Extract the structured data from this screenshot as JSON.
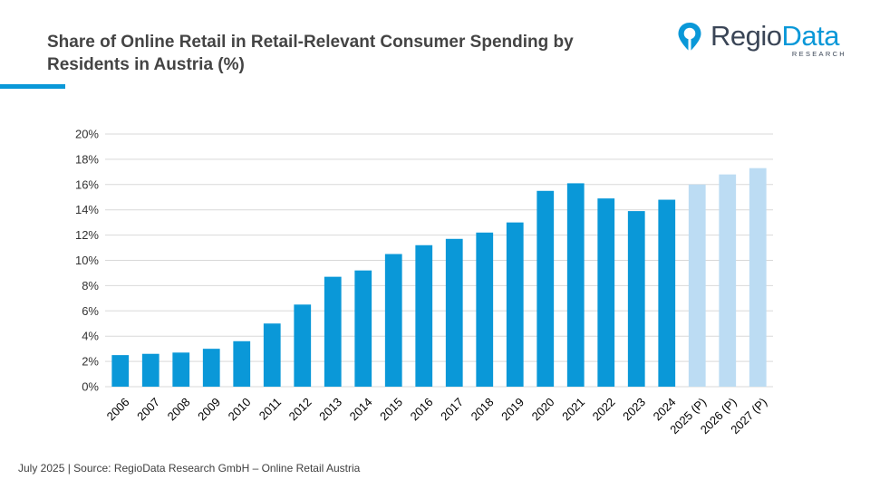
{
  "title_lines": [
    "Share of Online Retail in Retail-Relevant Consumer Spending by",
    "Residents in Austria (%)"
  ],
  "logo": {
    "name_part1": "Regio",
    "name_part2": "Data",
    "subtitle": "RESEARCH"
  },
  "footer": "July 2025 | Source: RegioData Research GmbH – Online Retail Austria",
  "colors": {
    "actual": "#0a98d8",
    "projected": "#bcdcf3",
    "accent": "#0a98d8",
    "grid": "#d9d9d9",
    "logo_dark": "#3a4556"
  },
  "chart_data": {
    "type": "bar",
    "categories": [
      "2006",
      "2007",
      "2008",
      "2009",
      "2010",
      "2011",
      "2012",
      "2013",
      "2014",
      "2015",
      "2016",
      "2017",
      "2018",
      "2019",
      "2020",
      "2021",
      "2022",
      "2023",
      "2024",
      "2025 (P)",
      "2026 (P)",
      "2027 (P)"
    ],
    "values": [
      2.5,
      2.6,
      2.7,
      3.0,
      3.6,
      5.0,
      6.5,
      8.7,
      9.2,
      10.5,
      11.2,
      11.7,
      12.2,
      13.0,
      15.5,
      16.1,
      14.9,
      13.9,
      14.8,
      16.0,
      16.8,
      17.3
    ],
    "projected": [
      false,
      false,
      false,
      false,
      false,
      false,
      false,
      false,
      false,
      false,
      false,
      false,
      false,
      false,
      false,
      false,
      false,
      false,
      false,
      true,
      true,
      true
    ],
    "ylim": [
      0,
      20
    ],
    "yticks": [
      "0%",
      "2%",
      "4%",
      "6%",
      "8%",
      "10%",
      "12%",
      "14%",
      "16%",
      "18%",
      "20%"
    ],
    "grid": true,
    "legend": "none"
  }
}
